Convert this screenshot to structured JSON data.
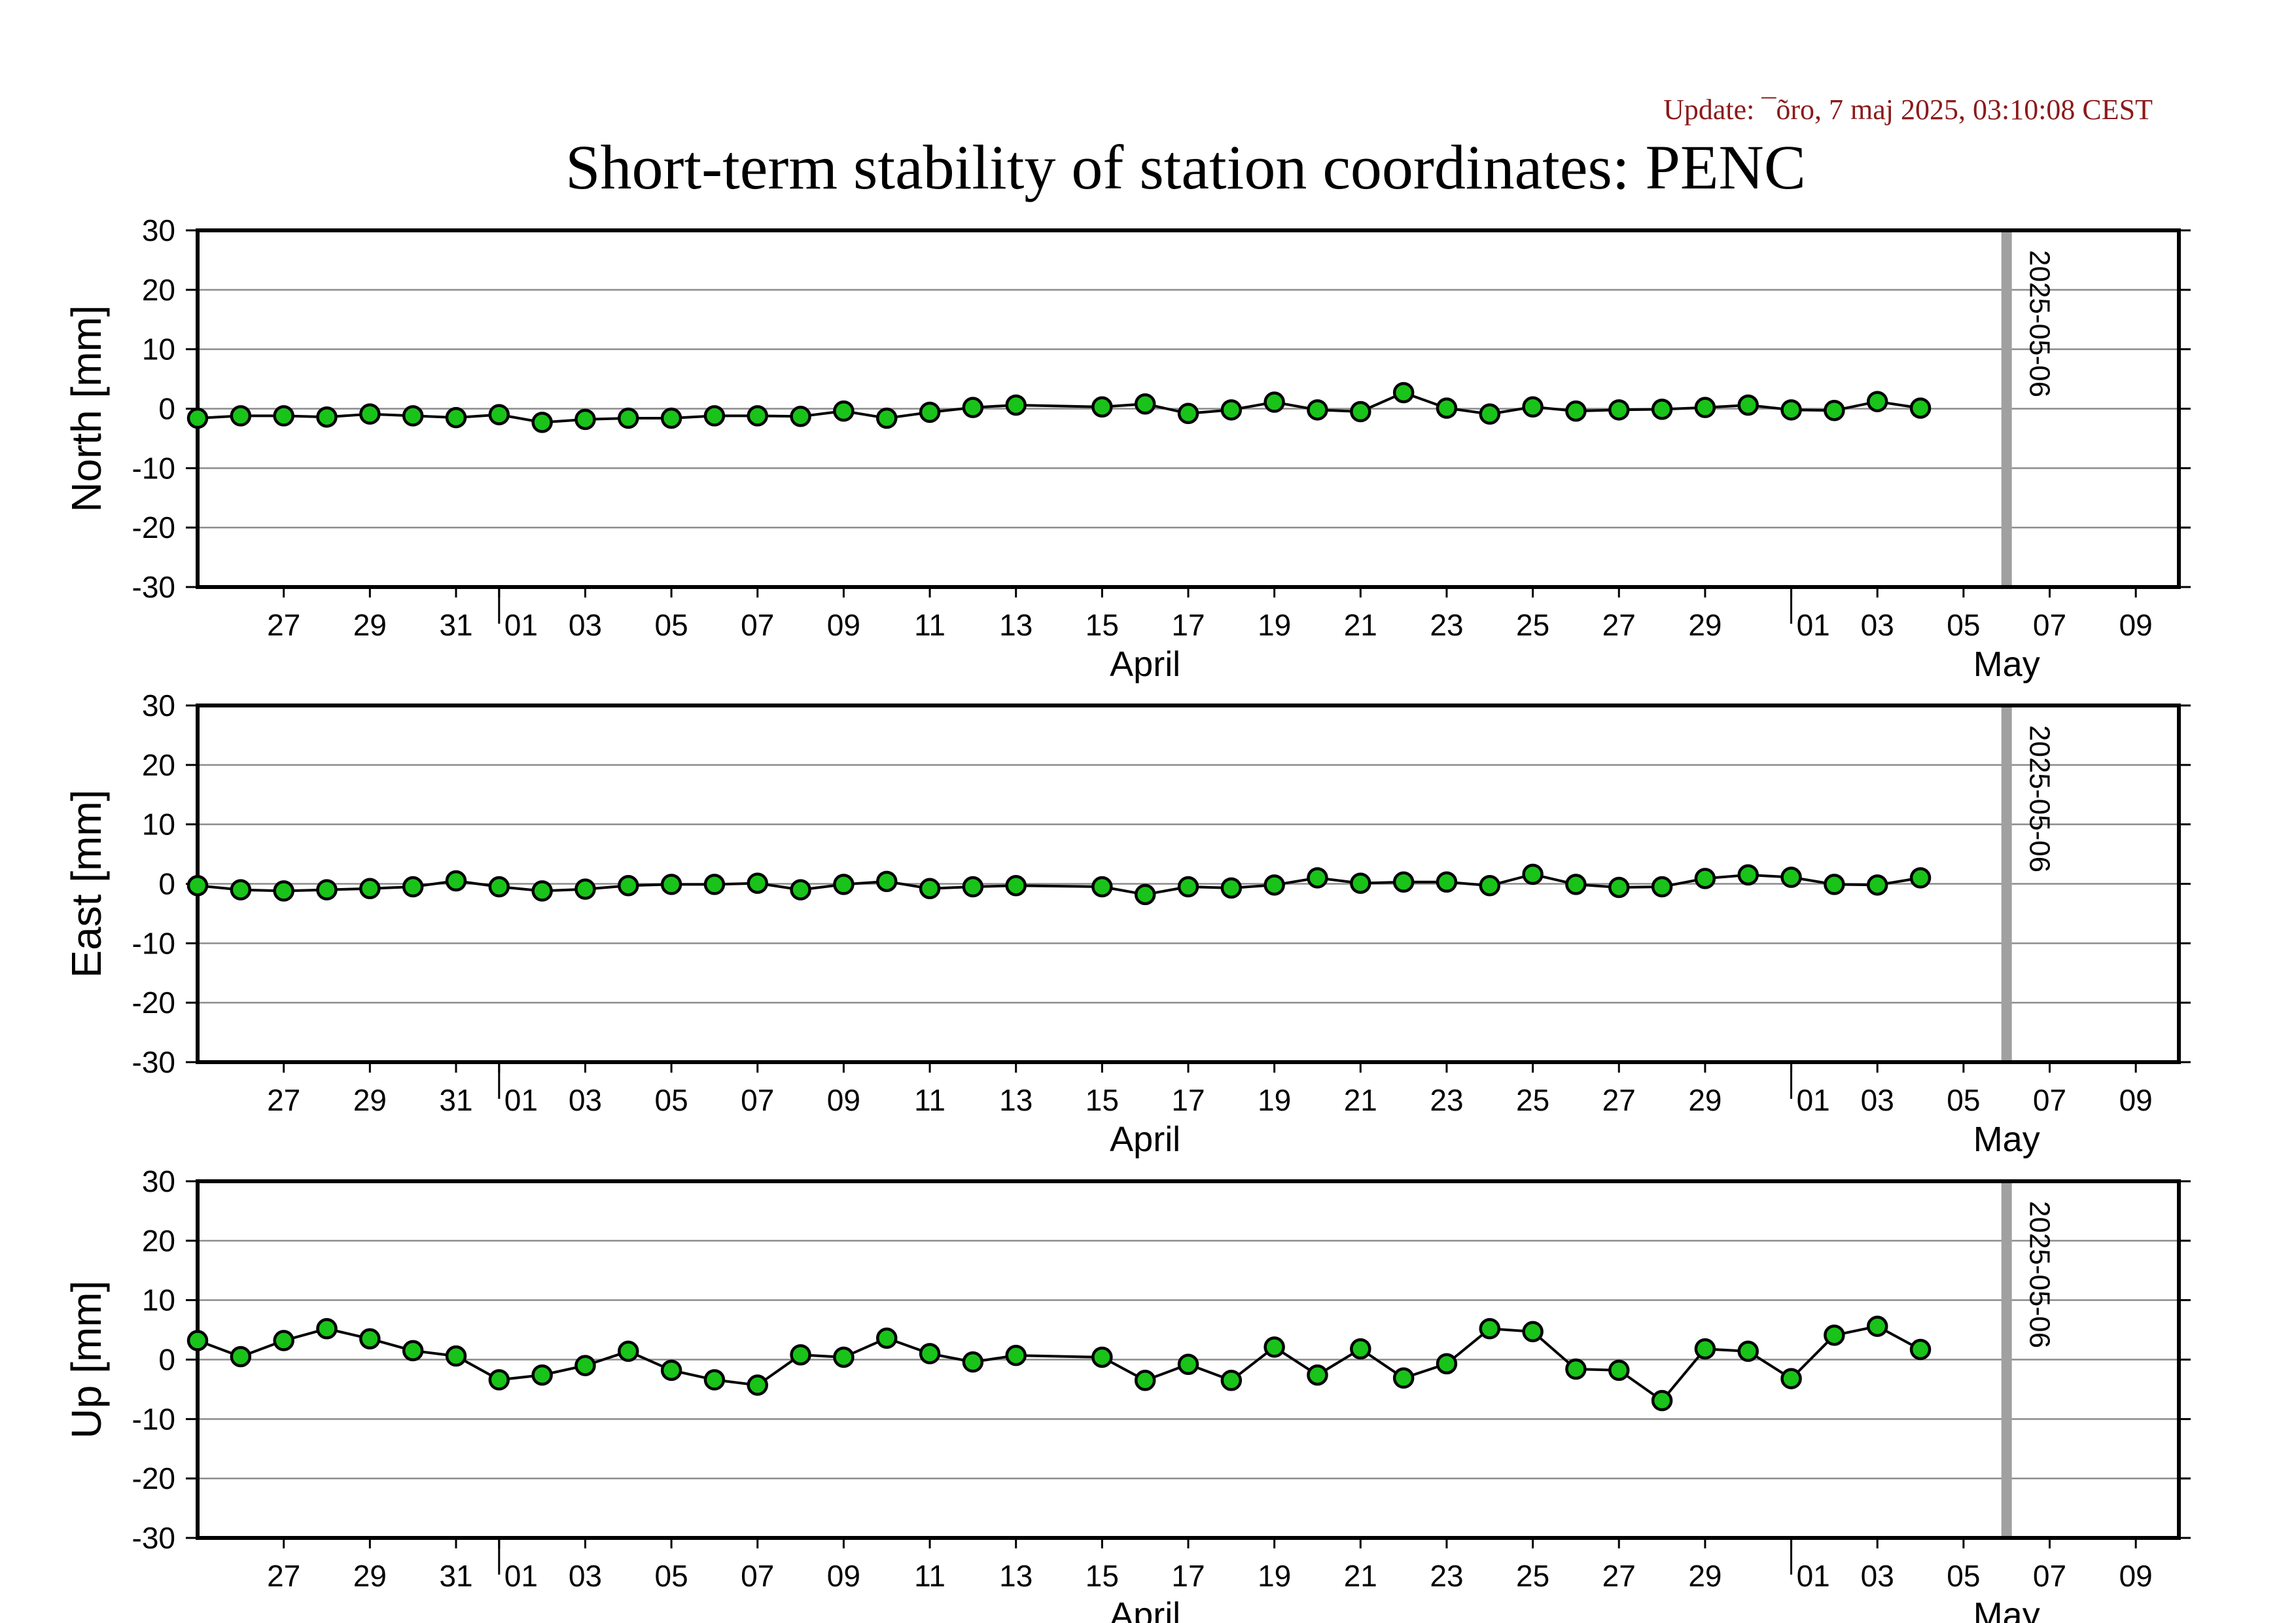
{
  "header": {
    "update_text": "Update: ¯õro, 7 maj 2025, 03:10:08 CEST",
    "title": "Short-term stability of station coordinates: PENC"
  },
  "colors": {
    "marker_fill": "#19c319",
    "marker_stroke": "#000000",
    "line": "#000000",
    "grid": "#8c8c8c",
    "marker_line": "#a0a0a0",
    "update_text": "#8b1a1a"
  },
  "chart_data": [
    {
      "type": "line",
      "ylabel": "North [mm]",
      "ylim": [
        -30,
        30
      ],
      "yticks": [
        -30,
        -20,
        -10,
        0,
        10,
        20,
        30
      ],
      "xlim": [
        "2025-03-25",
        "2025-05-10"
      ],
      "grid": "horizontal",
      "vertical_marker": {
        "date": "2025-05-06",
        "label": "2025-05-06"
      },
      "x": [
        "2025-03-25",
        "2025-03-26",
        "2025-03-27",
        "2025-03-28",
        "2025-03-29",
        "2025-03-30",
        "2025-03-31",
        "2025-04-01",
        "2025-04-02",
        "2025-04-03",
        "2025-04-04",
        "2025-04-05",
        "2025-04-06",
        "2025-04-07",
        "2025-04-08",
        "2025-04-09",
        "2025-04-10",
        "2025-04-11",
        "2025-04-12",
        "2025-04-13",
        "2025-04-15",
        "2025-04-16",
        "2025-04-17",
        "2025-04-18",
        "2025-04-19",
        "2025-04-20",
        "2025-04-21",
        "2025-04-22",
        "2025-04-23",
        "2025-04-24",
        "2025-04-25",
        "2025-04-26",
        "2025-04-27",
        "2025-04-28",
        "2025-04-29",
        "2025-04-30",
        "2025-05-01",
        "2025-05-02",
        "2025-05-03",
        "2025-05-04"
      ],
      "values": [
        -1.6,
        -1.2,
        -1.2,
        -1.4,
        -0.9,
        -1.2,
        -1.5,
        -1.0,
        -2.3,
        -1.8,
        -1.6,
        -1.6,
        -1.2,
        -1.2,
        -1.3,
        -0.4,
        -1.6,
        -0.6,
        0.2,
        0.6,
        0.3,
        0.8,
        -0.8,
        -0.2,
        1.1,
        -0.2,
        -0.5,
        2.7,
        0.1,
        -0.9,
        0.3,
        -0.4,
        -0.2,
        -0.1,
        0.2,
        0.6,
        -0.2,
        -0.3,
        1.2,
        0.1
      ]
    },
    {
      "type": "line",
      "ylabel": "East [mm]",
      "ylim": [
        -30,
        30
      ],
      "yticks": [
        -30,
        -20,
        -10,
        0,
        10,
        20,
        30
      ],
      "xlim": [
        "2025-03-25",
        "2025-05-10"
      ],
      "grid": "horizontal",
      "vertical_marker": {
        "date": "2025-05-06",
        "label": "2025-05-06"
      },
      "x": [
        "2025-03-25",
        "2025-03-26",
        "2025-03-27",
        "2025-03-28",
        "2025-03-29",
        "2025-03-30",
        "2025-03-31",
        "2025-04-01",
        "2025-04-02",
        "2025-04-03",
        "2025-04-04",
        "2025-04-05",
        "2025-04-06",
        "2025-04-07",
        "2025-04-08",
        "2025-04-09",
        "2025-04-10",
        "2025-04-11",
        "2025-04-12",
        "2025-04-13",
        "2025-04-15",
        "2025-04-16",
        "2025-04-17",
        "2025-04-18",
        "2025-04-19",
        "2025-04-20",
        "2025-04-21",
        "2025-04-22",
        "2025-04-23",
        "2025-04-24",
        "2025-04-25",
        "2025-04-26",
        "2025-04-27",
        "2025-04-28",
        "2025-04-29",
        "2025-04-30",
        "2025-05-01",
        "2025-05-02",
        "2025-05-03",
        "2025-05-04"
      ],
      "values": [
        -0.3,
        -1.0,
        -1.2,
        -1.0,
        -0.8,
        -0.5,
        0.5,
        -0.5,
        -1.2,
        -0.9,
        -0.3,
        -0.1,
        -0.1,
        0.1,
        -1.0,
        -0.1,
        0.4,
        -0.8,
        -0.5,
        -0.3,
        -0.5,
        -1.8,
        -0.5,
        -0.7,
        -0.2,
        1.0,
        0.1,
        0.3,
        0.3,
        -0.3,
        1.6,
        -0.1,
        -0.6,
        -0.5,
        0.9,
        1.5,
        1.1,
        -0.1,
        -0.2,
        1.0
      ]
    },
    {
      "type": "line",
      "ylabel": "Up [mm]",
      "ylim": [
        -30,
        30
      ],
      "yticks": [
        -30,
        -20,
        -10,
        0,
        10,
        20,
        30
      ],
      "xlim": [
        "2025-03-25",
        "2025-05-10"
      ],
      "grid": "horizontal",
      "vertical_marker": {
        "date": "2025-05-06",
        "label": "2025-05-06"
      },
      "x": [
        "2025-03-25",
        "2025-03-26",
        "2025-03-27",
        "2025-03-28",
        "2025-03-29",
        "2025-03-30",
        "2025-03-31",
        "2025-04-01",
        "2025-04-02",
        "2025-04-03",
        "2025-04-04",
        "2025-04-05",
        "2025-04-06",
        "2025-04-07",
        "2025-04-08",
        "2025-04-09",
        "2025-04-10",
        "2025-04-11",
        "2025-04-12",
        "2025-04-13",
        "2025-04-15",
        "2025-04-16",
        "2025-04-17",
        "2025-04-18",
        "2025-04-19",
        "2025-04-20",
        "2025-04-21",
        "2025-04-22",
        "2025-04-23",
        "2025-04-24",
        "2025-04-25",
        "2025-04-26",
        "2025-04-27",
        "2025-04-28",
        "2025-04-29",
        "2025-04-30",
        "2025-05-01",
        "2025-05-02",
        "2025-05-03",
        "2025-05-04"
      ],
      "values": [
        3.2,
        0.5,
        3.2,
        5.2,
        3.5,
        1.5,
        0.6,
        -3.4,
        -2.6,
        -1.0,
        1.4,
        -1.8,
        -3.4,
        -4.3,
        0.8,
        0.4,
        3.6,
        1.0,
        -0.4,
        0.7,
        0.4,
        -3.5,
        -0.8,
        -3.5,
        2.1,
        -2.6,
        1.8,
        -3.1,
        -0.7,
        5.2,
        4.7,
        -1.6,
        -1.8,
        -6.9,
        1.8,
        1.4,
        -3.2,
        4.1,
        5.6,
        1.7
      ]
    }
  ],
  "x_axis": {
    "tick_dates": [
      "2025-03-27",
      "2025-03-29",
      "2025-03-31",
      "2025-04-01",
      "2025-04-03",
      "2025-04-05",
      "2025-04-07",
      "2025-04-09",
      "2025-04-11",
      "2025-04-13",
      "2025-04-15",
      "2025-04-17",
      "2025-04-19",
      "2025-04-21",
      "2025-04-23",
      "2025-04-25",
      "2025-04-27",
      "2025-04-29",
      "2025-05-01",
      "2025-05-03",
      "2025-05-05",
      "2025-05-07",
      "2025-05-09"
    ],
    "tick_labels": [
      "27",
      "29",
      "31",
      "01",
      "03",
      "05",
      "07",
      "09",
      "11",
      "13",
      "15",
      "17",
      "19",
      "21",
      "23",
      "25",
      "27",
      "29",
      "01",
      "03",
      "05",
      "07",
      "09"
    ],
    "month_labels": [
      {
        "text": "April",
        "date": "2025-04-16"
      },
      {
        "text": "May",
        "date": "2025-05-06"
      }
    ],
    "month_boundaries": [
      "2025-04-01",
      "2025-05-01"
    ]
  }
}
